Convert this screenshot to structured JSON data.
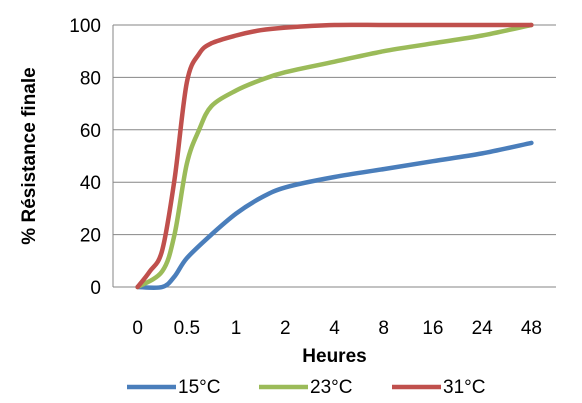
{
  "chart_data": {
    "type": "line",
    "title": "",
    "xlabel": "Heures",
    "ylabel": "% Résistance finale",
    "categories": [
      "0",
      "0.5",
      "1",
      "2",
      "4",
      "8",
      "16",
      "24",
      "48"
    ],
    "ylim": [
      0,
      100
    ],
    "yticks": [
      "0",
      "20",
      "40",
      "60",
      "80",
      "100"
    ],
    "grid": "horizontal",
    "legend_position": "bottom",
    "series": [
      {
        "name": "15°C",
        "color": "#4a7ebb",
        "x": [
          0,
          0.5,
          0.75,
          1,
          1.5,
          2,
          2.5,
          3,
          4,
          5,
          6,
          7,
          8
        ],
        "y": [
          0,
          0,
          4,
          11,
          20,
          28,
          34,
          38,
          42,
          45,
          48,
          51,
          55
        ]
      },
      {
        "name": "23°C",
        "color": "#9bbb59",
        "x": [
          0,
          0.5,
          0.75,
          1,
          1.25,
          1.5,
          2,
          2.5,
          3,
          4,
          5,
          6,
          7,
          8
        ],
        "y": [
          0,
          6,
          20,
          47,
          60,
          69,
          75,
          79,
          82,
          86,
          90,
          93,
          96,
          100
        ]
      },
      {
        "name": "31°C",
        "color": "#c0504d",
        "x": [
          0,
          0.25,
          0.5,
          0.75,
          1,
          1.25,
          1.5,
          2,
          2.5,
          3,
          4,
          5,
          6,
          7,
          8
        ],
        "y": [
          0,
          6,
          14,
          41,
          78,
          89,
          93,
          96,
          98,
          99,
          100,
          100,
          100,
          100,
          100
        ]
      }
    ]
  }
}
